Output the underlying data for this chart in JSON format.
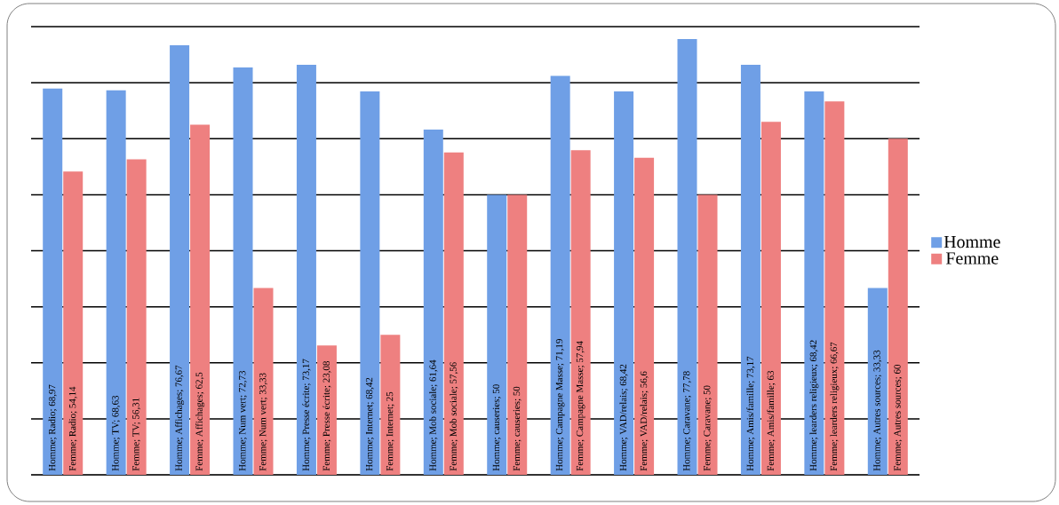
{
  "chart_data": {
    "type": "bar",
    "categories": [
      null,
      null,
      null,
      null,
      null,
      null,
      null,
      null,
      null,
      null,
      null,
      null,
      null,
      null
    ],
    "series": [
      {
        "name": "Homme",
        "color": "#6f9fe6",
        "values": [
          68.97,
          68.63,
          76.67,
          72.73,
          73.17,
          68.42,
          61.64,
          50,
          71.19,
          68.42,
          77.78,
          73.17,
          68.42,
          33.33
        ],
        "value_labels": [
          "Homme; Radio; 68,97",
          "Homme; TV; 68,63",
          "Homme; Affichages; 76,67",
          "Homme; Num vert; 72,73",
          "Homme; Presse écrite; 73,17",
          "Homme; Internet; 68,42",
          "Homme; Mob sociale; 61,64",
          "Homme; causeries; 50",
          "Homme; Campagne Masse; 71,19",
          "Homme; VAD/relais; 68,42",
          "Homme; Caravane; 77,78",
          "Homme; Amis/famille; 73,17",
          "Homme; learders religieux; 68,42",
          "Homme; Autres sources; 33,33"
        ]
      },
      {
        "name": "Femme",
        "color": "#ee8080",
        "values": [
          54.14,
          56.31,
          62.5,
          33.33,
          23.08,
          25,
          57.56,
          50,
          57.94,
          56.6,
          50,
          63,
          66.67,
          60
        ],
        "value_labels": [
          "Femme; Radio; 54,14",
          "Femme; TV; 56,31",
          "Femme; Affichages; 62,5",
          "Femme; Num vert; 33,33",
          "Femme; Presse écrite; 23,08",
          "Femme; Internet; 25",
          "Femme; Mob sociale; 57,56",
          "Femme; causeries; 50",
          "Femme; Campagne Masse; 57,94",
          "Femme; VAD/relais; 56,6",
          "Femme; Caravane; 50",
          "Femme; Amis/famille; 63",
          "Femme; learders religieux; 66,67",
          "Femme; Autres sources; 60"
        ]
      }
    ],
    "ylim": [
      0,
      80
    ],
    "yticks": [
      {
        "value": 0,
        "label": null
      },
      {
        "value": 10,
        "label": null
      },
      {
        "value": 20,
        "label": null
      },
      {
        "value": 30,
        "label": null
      },
      {
        "value": 40,
        "label": null
      },
      {
        "value": 50,
        "label": null
      },
      {
        "value": 60,
        "label": null
      },
      {
        "value": 70,
        "label": null
      },
      {
        "value": 80,
        "label": null
      }
    ],
    "grid": "y",
    "legend": "right",
    "tick_labels": false
  }
}
